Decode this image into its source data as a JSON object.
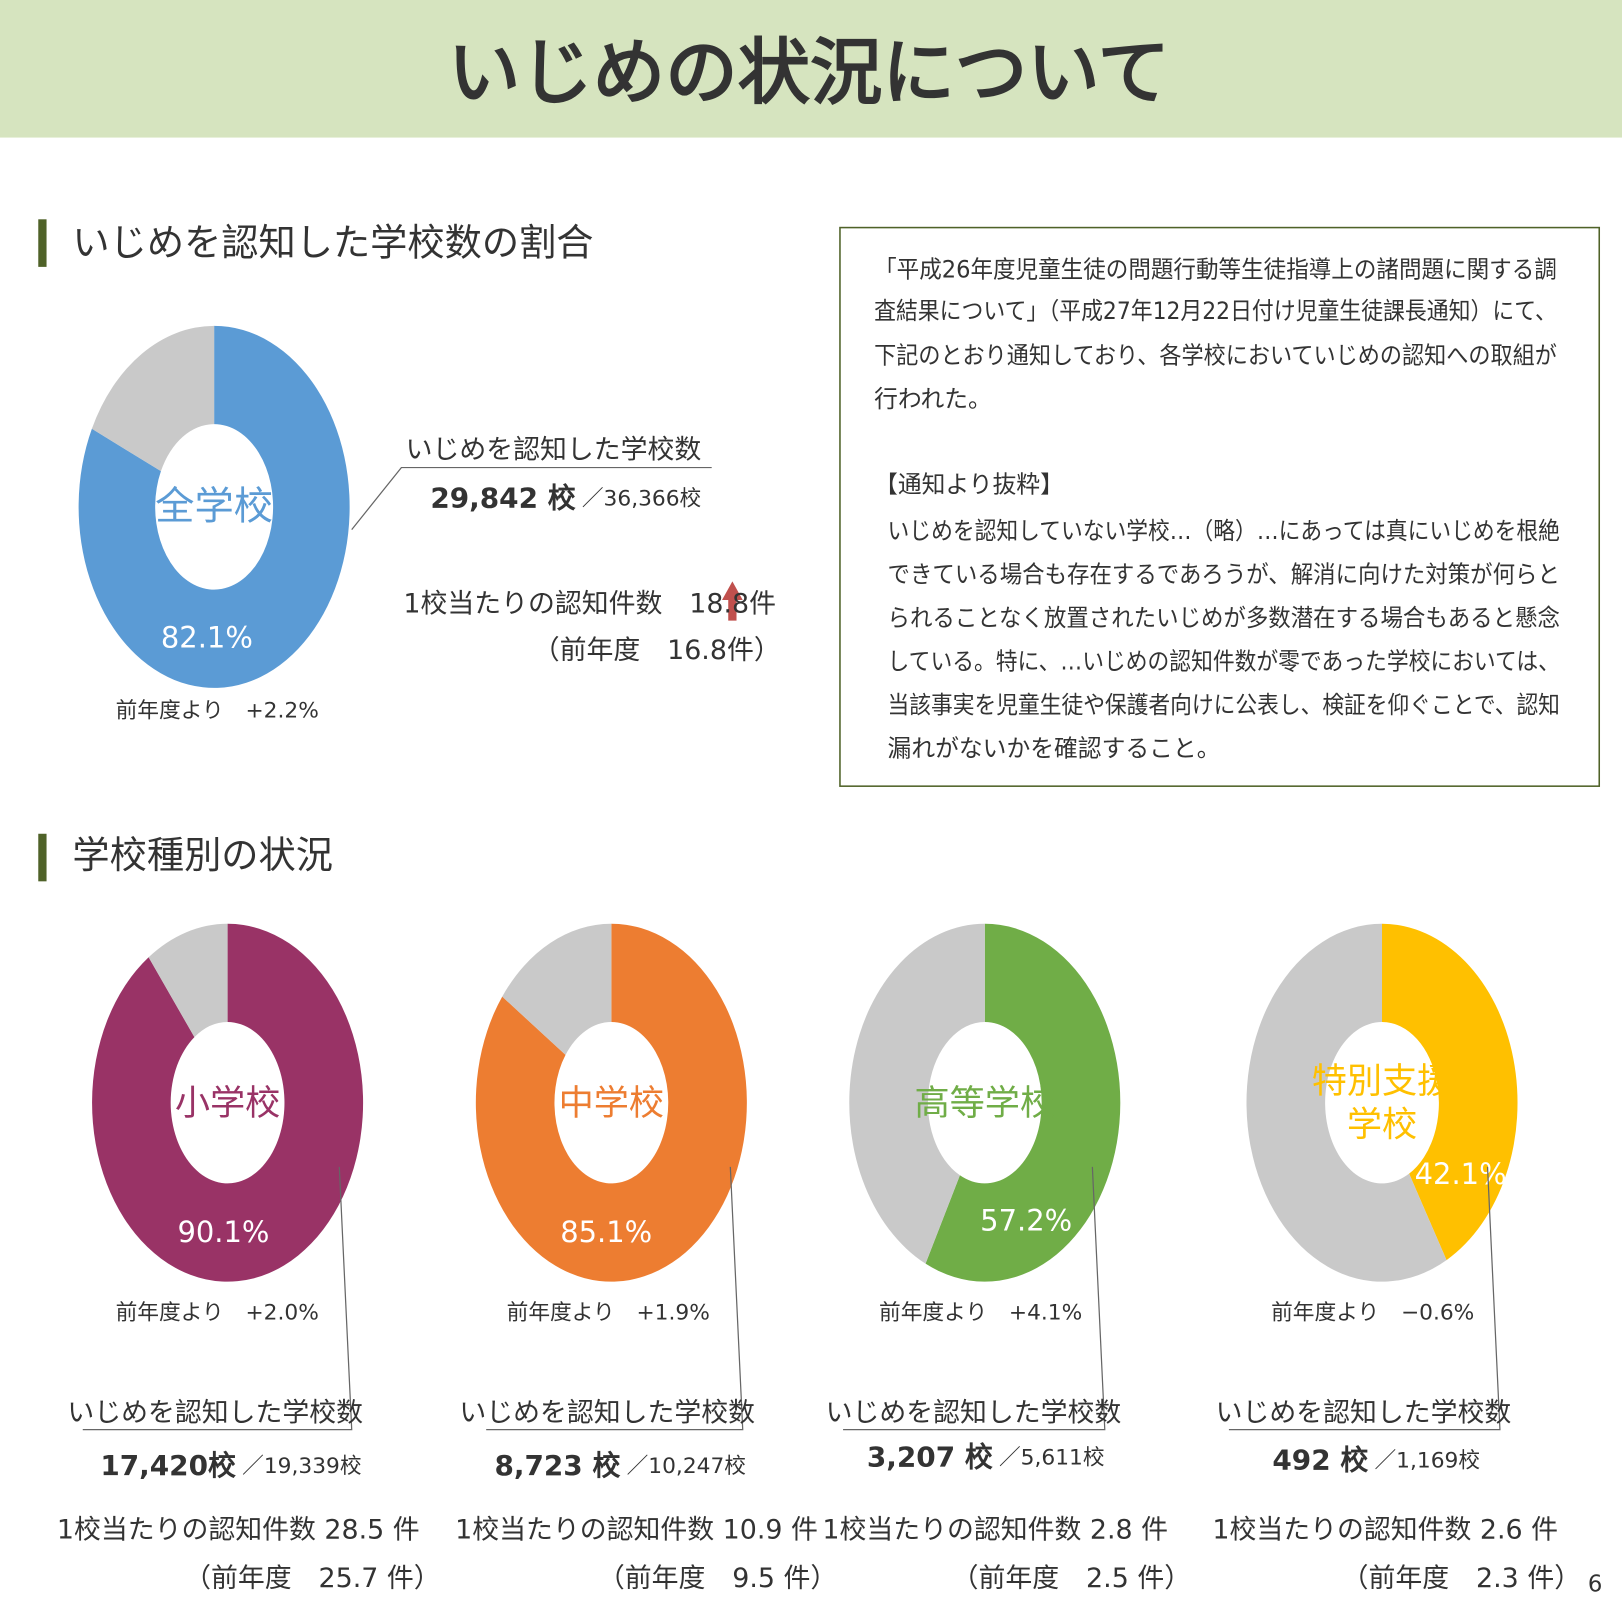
{
  "header": {
    "title": "いじめの状況について"
  },
  "sections": [
    "いじめを認知した学校数の割合",
    "学校種別の状況"
  ],
  "note": {
    "lines": [
      "「平成26年度児童生徒の問題行動等生徒指導上の諸問題に関する調",
      "査結果について」（平成27年12月22日付け児童生徒課長通知）にて、",
      "下記のとおり通知しており、各学校においていじめの認知への取組が",
      "行われた。"
    ],
    "heading": "【通知より抜粋】",
    "quote": [
      "いじめを認知していない学校…（略）…にあっては真にいじめを根絶",
      "できている場合も存在するであろうが、解消に向けた対策が何らと",
      "られることなく放置されたいじめが多数潜在する場合もあると懸念",
      "している。特に、…いじめの認知件数が零であった学校においては、",
      "当該事実を児童生徒や保護者向けに公表し、検証を仰ぐことで、認知",
      "漏れがないかを確認すること。"
    ]
  },
  "page_number": "6",
  "chart_data": [
    {
      "type": "pie",
      "center_label": [
        "全学校"
      ],
      "values": [
        82.1,
        17.9
      ],
      "value_labels": [
        "82.1%",
        null
      ],
      "colors": [
        "#5b9bd5",
        "#c9c9c9"
      ],
      "change": "前年度より　+2.2%",
      "count_title": "いじめを認知した学校数",
      "count": "29,842 校",
      "total": "／36,366校",
      "per_school": "1校当たりの認知件数　18.8件",
      "previous": "（前年度　16.8件）"
    },
    {
      "type": "pie",
      "center_label": [
        "小学校"
      ],
      "values": [
        90.1,
        9.9
      ],
      "value_labels": [
        "90.1%",
        null
      ],
      "colors": [
        "#993366",
        "#c9c9c9"
      ],
      "change": "前年度より　+2.0%",
      "count_title": "いじめを認知した学校数",
      "count": "17,420校",
      "total": "／19,339校",
      "per_school": "1校当たりの認知件数 28.5 件",
      "previous": "（前年度　25.7 件）"
    },
    {
      "type": "pie",
      "center_label": [
        "中学校"
      ],
      "values": [
        85.1,
        14.9
      ],
      "value_labels": [
        "85.1%",
        null
      ],
      "colors": [
        "#ed7d31",
        "#c9c9c9"
      ],
      "change": "前年度より　+1.9%",
      "count_title": "いじめを認知した学校数",
      "count": "8,723 校",
      "total": "／10,247校",
      "per_school": "1校当たりの認知件数 10.9 件",
      "previous": "（前年度　9.5 件）"
    },
    {
      "type": "pie",
      "center_label": [
        "高等学校"
      ],
      "values": [
        57.2,
        42.8
      ],
      "value_labels": [
        "57.2%",
        null
      ],
      "colors": [
        "#70ad47",
        "#c9c9c9"
      ],
      "change": "前年度より　+4.1%",
      "count_title": "いじめを認知した学校数",
      "count": "3,207 校",
      "total": "／5,611校",
      "per_school": "1校当たりの認知件数 2.8 件",
      "previous": "（前年度　2.5 件）"
    },
    {
      "type": "pie",
      "center_label": [
        "特別支援",
        "学校"
      ],
      "values": [
        42.1,
        57.9
      ],
      "value_labels": [
        "42.1%",
        null
      ],
      "colors": [
        "#ffc000",
        "#c9c9c9"
      ],
      "change": "前年度より　−0.6%",
      "count_title": "いじめを認知した学校数",
      "count": "492 校",
      "total": "／1,169校",
      "per_school": "1校当たりの認知件数 2.6 件",
      "previous": "（前年度　2.3 件）"
    }
  ]
}
